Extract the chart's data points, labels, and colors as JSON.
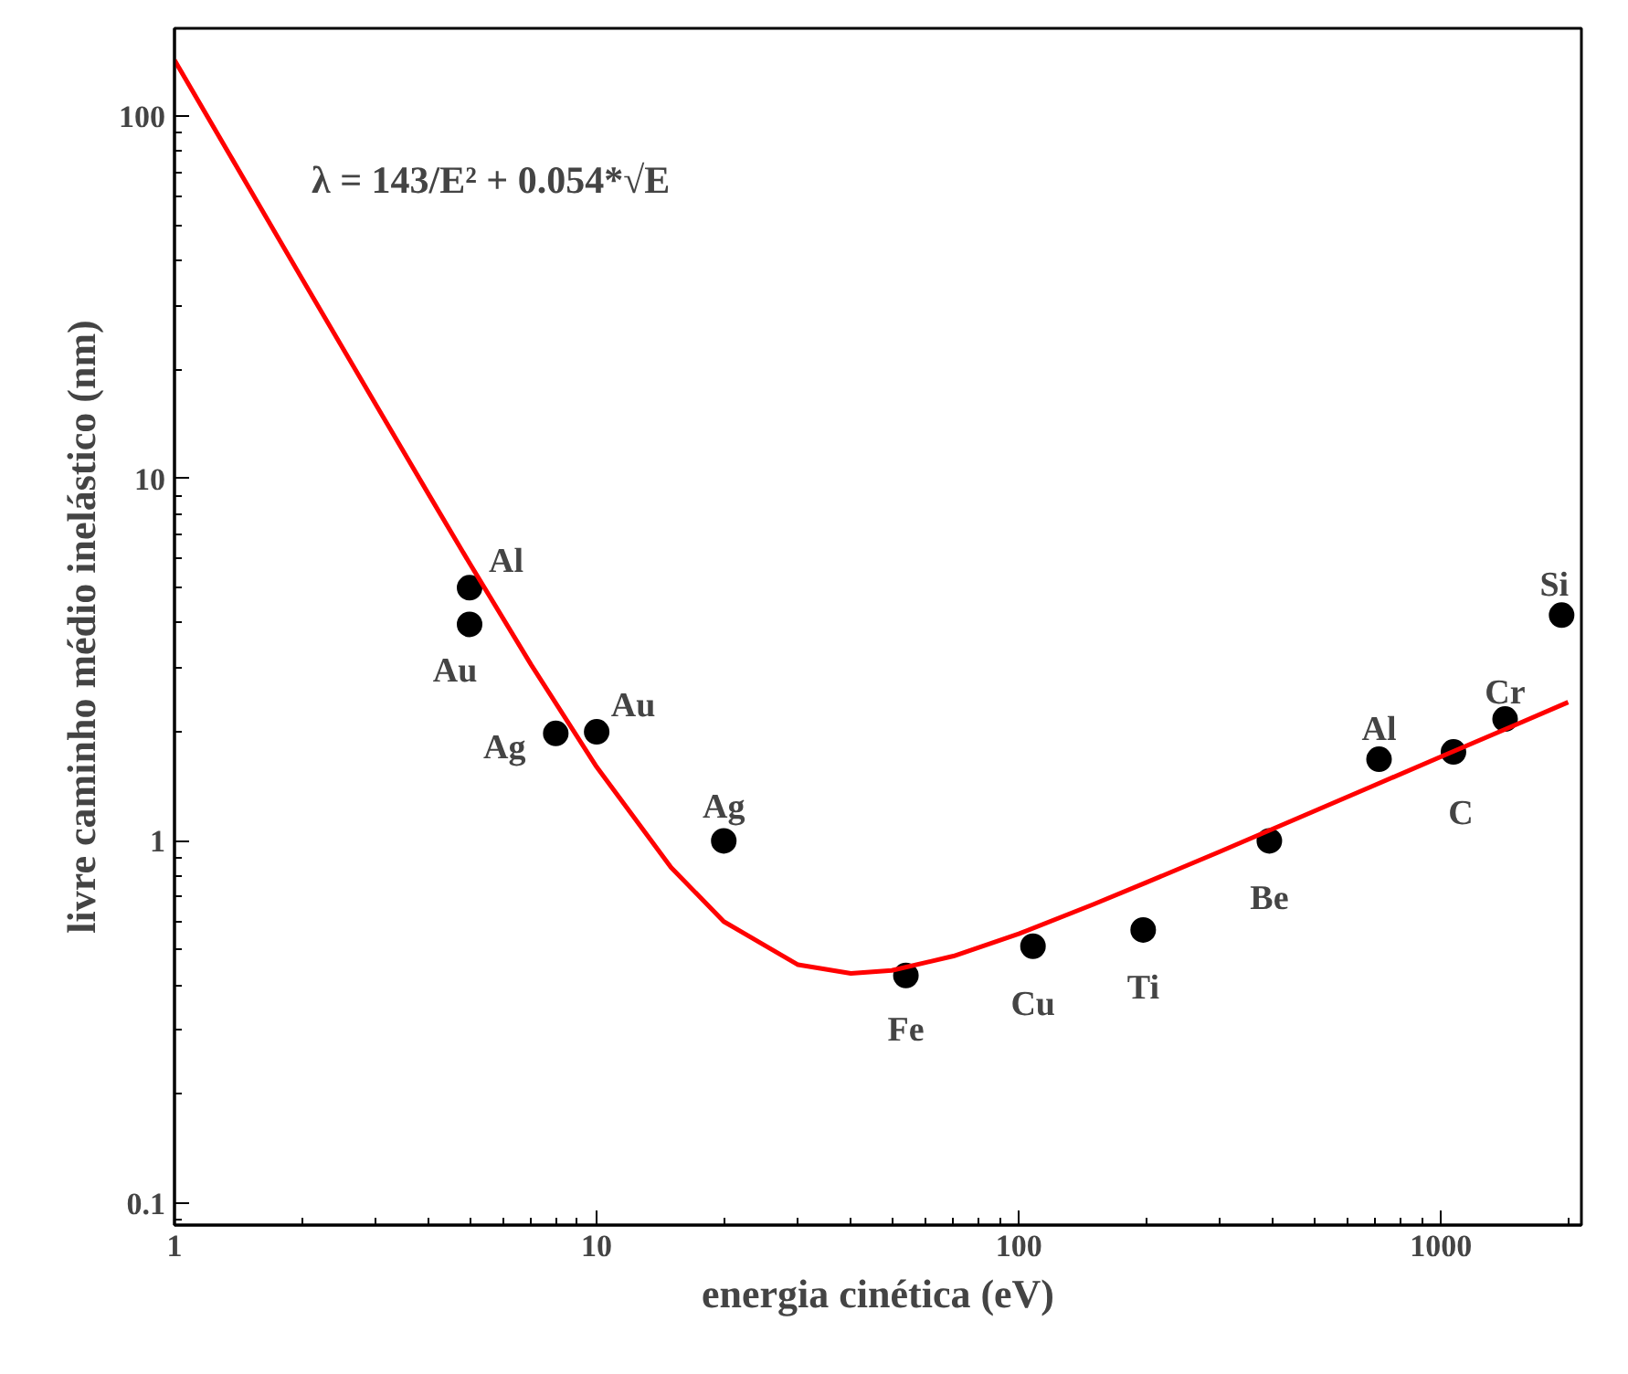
{
  "chart_data": {
    "type": "scatter",
    "xlabel": "energia cinética (eV)",
    "ylabel": "livre caminho médio inelástico (nm)",
    "log": "xy",
    "xlim": [
      1,
      2150
    ],
    "ylim": [
      0.087,
      175
    ],
    "xticks": [
      1,
      10,
      100,
      1000
    ],
    "yticks": [
      0.1,
      1,
      10,
      100
    ],
    "grid": false,
    "series": [
      {
        "marker": "circle",
        "color": "#000000",
        "x": [
          5,
          5,
          8,
          10,
          20,
          54,
          108,
          197,
          392,
          713,
          1070,
          1418,
          1930
        ],
        "values": [
          5.0,
          3.96,
          1.98,
          2.0,
          1.0,
          0.425,
          0.512,
          0.568,
          1.0,
          1.68,
          1.76,
          2.17,
          4.2
        ]
      },
      {
        "type": "line",
        "color": "#ff0000",
        "line_style": "solid",
        "x": [
          1,
          1.5,
          2,
          3,
          4,
          5,
          7,
          10,
          15,
          20,
          30,
          40,
          50,
          70,
          100,
          150,
          200,
          300,
          500,
          700,
          1000,
          1500,
          2000
        ],
        "values": [
          143,
          63.6,
          35.8,
          16.0,
          9.05,
          5.84,
          3.06,
          1.6,
          0.845,
          0.599,
          0.455,
          0.431,
          0.439,
          0.481,
          0.554,
          0.668,
          0.767,
          0.935,
          1.207,
          1.429,
          1.708,
          2.091,
          2.415
        ]
      }
    ],
    "annotations": [
      {
        "text": "Al",
        "x": 5,
        "y": 5.0
      },
      {
        "text": "Au",
        "x": 5,
        "y": 3.96
      },
      {
        "text": "Ag",
        "x": 8,
        "y": 1.98
      },
      {
        "text": "Au",
        "x": 10,
        "y": 2.0
      },
      {
        "text": "Ag",
        "x": 20,
        "y": 1.0
      },
      {
        "text": "Fe",
        "x": 54,
        "y": 0.425
      },
      {
        "text": "Cu",
        "x": 108,
        "y": 0.512
      },
      {
        "text": "Ti",
        "x": 197,
        "y": 0.568
      },
      {
        "text": "Be",
        "x": 392,
        "y": 1.0
      },
      {
        "text": "Al",
        "x": 713,
        "y": 1.68
      },
      {
        "text": "C",
        "x": 1070,
        "y": 1.76
      },
      {
        "text": "Cr",
        "x": 1418,
        "y": 2.17
      },
      {
        "text": "Si",
        "x": 1930,
        "y": 4.2
      },
      "λ = 143/E² + 0.054*√E"
    ]
  }
}
